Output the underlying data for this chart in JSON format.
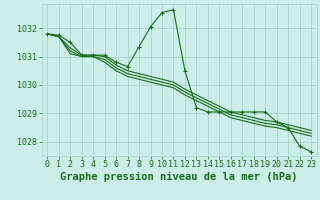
{
  "background_color": "#cceee8",
  "grid_color": "#aad4cc",
  "line_color": "#1a6b1a",
  "xlabel": "Graphe pression niveau de la mer (hPa)",
  "xlabel_fontsize": 7.5,
  "tick_fontsize": 6,
  "ylim": [
    1027.5,
    1032.85
  ],
  "yticks": [
    1028,
    1029,
    1030,
    1031,
    1032
  ],
  "xlim": [
    -0.5,
    23.5
  ],
  "xticks": [
    0,
    1,
    2,
    3,
    4,
    5,
    6,
    7,
    8,
    9,
    10,
    11,
    12,
    13,
    14,
    15,
    16,
    17,
    18,
    19,
    20,
    21,
    22,
    23
  ],
  "series": [
    {
      "x": [
        0,
        1,
        2,
        3,
        4,
        5,
        6,
        7,
        8,
        9,
        10,
        11,
        12,
        13,
        14,
        15,
        16,
        17,
        18,
        19,
        20,
        21,
        22,
        23
      ],
      "y": [
        1031.8,
        1031.75,
        1031.5,
        1031.05,
        1031.05,
        1031.05,
        1030.8,
        1030.65,
        1031.35,
        1032.05,
        1032.55,
        1032.65,
        1030.5,
        1029.2,
        1029.05,
        1029.05,
        1029.05,
        1029.05,
        1029.05,
        1029.05,
        1028.7,
        1028.5,
        1027.85,
        1027.65
      ],
      "marker": "+"
    },
    {
      "x": [
        0,
        1,
        2,
        3,
        4,
        5,
        6,
        7,
        8,
        9,
        10,
        11,
        12,
        13,
        14,
        15,
        16,
        17,
        18,
        19,
        20,
        21,
        22,
        23
      ],
      "y": [
        1031.8,
        1031.7,
        1031.1,
        1031.0,
        1031.0,
        1030.8,
        1030.5,
        1030.3,
        1030.2,
        1030.1,
        1030.0,
        1029.9,
        1029.65,
        1029.45,
        1029.25,
        1029.05,
        1028.85,
        1028.75,
        1028.65,
        1028.55,
        1028.5,
        1028.4,
        1028.3,
        1028.2
      ],
      "marker": null
    },
    {
      "x": [
        0,
        1,
        2,
        3,
        4,
        5,
        6,
        7,
        8,
        9,
        10,
        11,
        12,
        13,
        14,
        15,
        16,
        17,
        18,
        19,
        20,
        21,
        22,
        23
      ],
      "y": [
        1031.8,
        1031.7,
        1031.2,
        1031.0,
        1031.0,
        1030.9,
        1030.6,
        1030.4,
        1030.3,
        1030.2,
        1030.1,
        1030.0,
        1029.75,
        1029.55,
        1029.35,
        1029.15,
        1028.95,
        1028.85,
        1028.75,
        1028.65,
        1028.6,
        1028.5,
        1028.4,
        1028.3
      ],
      "marker": null
    },
    {
      "x": [
        0,
        1,
        2,
        3,
        4,
        5,
        6,
        7,
        8,
        9,
        10,
        11,
        12,
        13,
        14,
        15,
        16,
        17,
        18,
        19,
        20,
        21,
        22,
        23
      ],
      "y": [
        1031.8,
        1031.7,
        1031.3,
        1031.05,
        1031.05,
        1031.0,
        1030.7,
        1030.5,
        1030.4,
        1030.3,
        1030.2,
        1030.1,
        1029.85,
        1029.65,
        1029.45,
        1029.25,
        1029.05,
        1028.95,
        1028.85,
        1028.75,
        1028.7,
        1028.6,
        1028.5,
        1028.4
      ],
      "marker": null
    }
  ]
}
